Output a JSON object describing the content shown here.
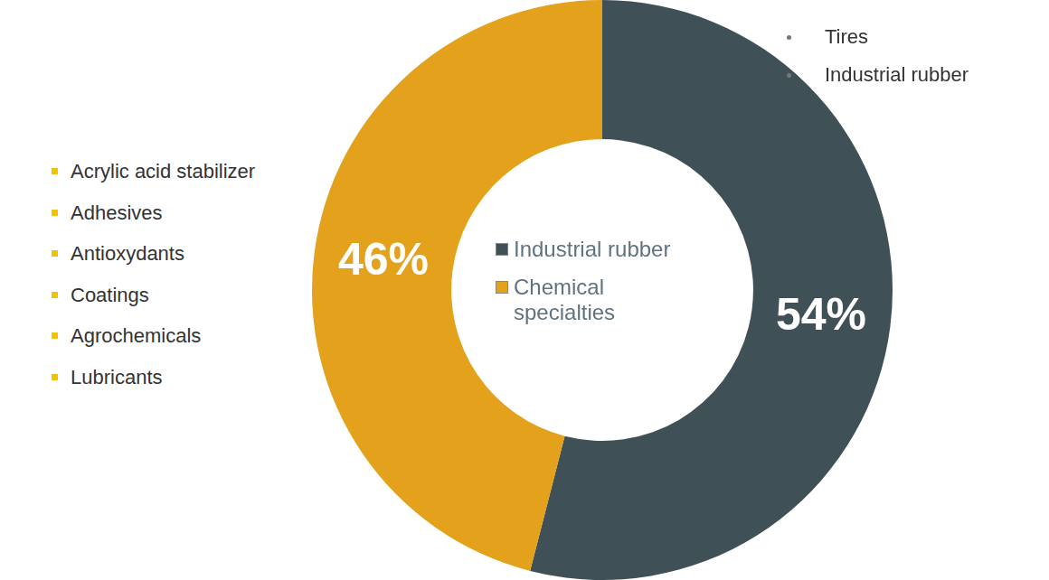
{
  "chart_data": {
    "type": "doughnut",
    "categories": [
      "Industrial rubber",
      "Chemical specialties"
    ],
    "values": [
      54,
      46
    ],
    "value_labels": [
      "54%",
      "46%"
    ],
    "colors": [
      "#3f5157",
      "#e3a11c"
    ],
    "data_labels": true,
    "legend": "center",
    "annotations": [
      [
        "Tires",
        "Industrial rubber"
      ],
      [
        "Acrylic acid stabilizer",
        "Adhesives",
        "Antioxydants",
        "Coatings",
        "Agrochemicals",
        "Lubricants"
      ]
    ]
  }
}
